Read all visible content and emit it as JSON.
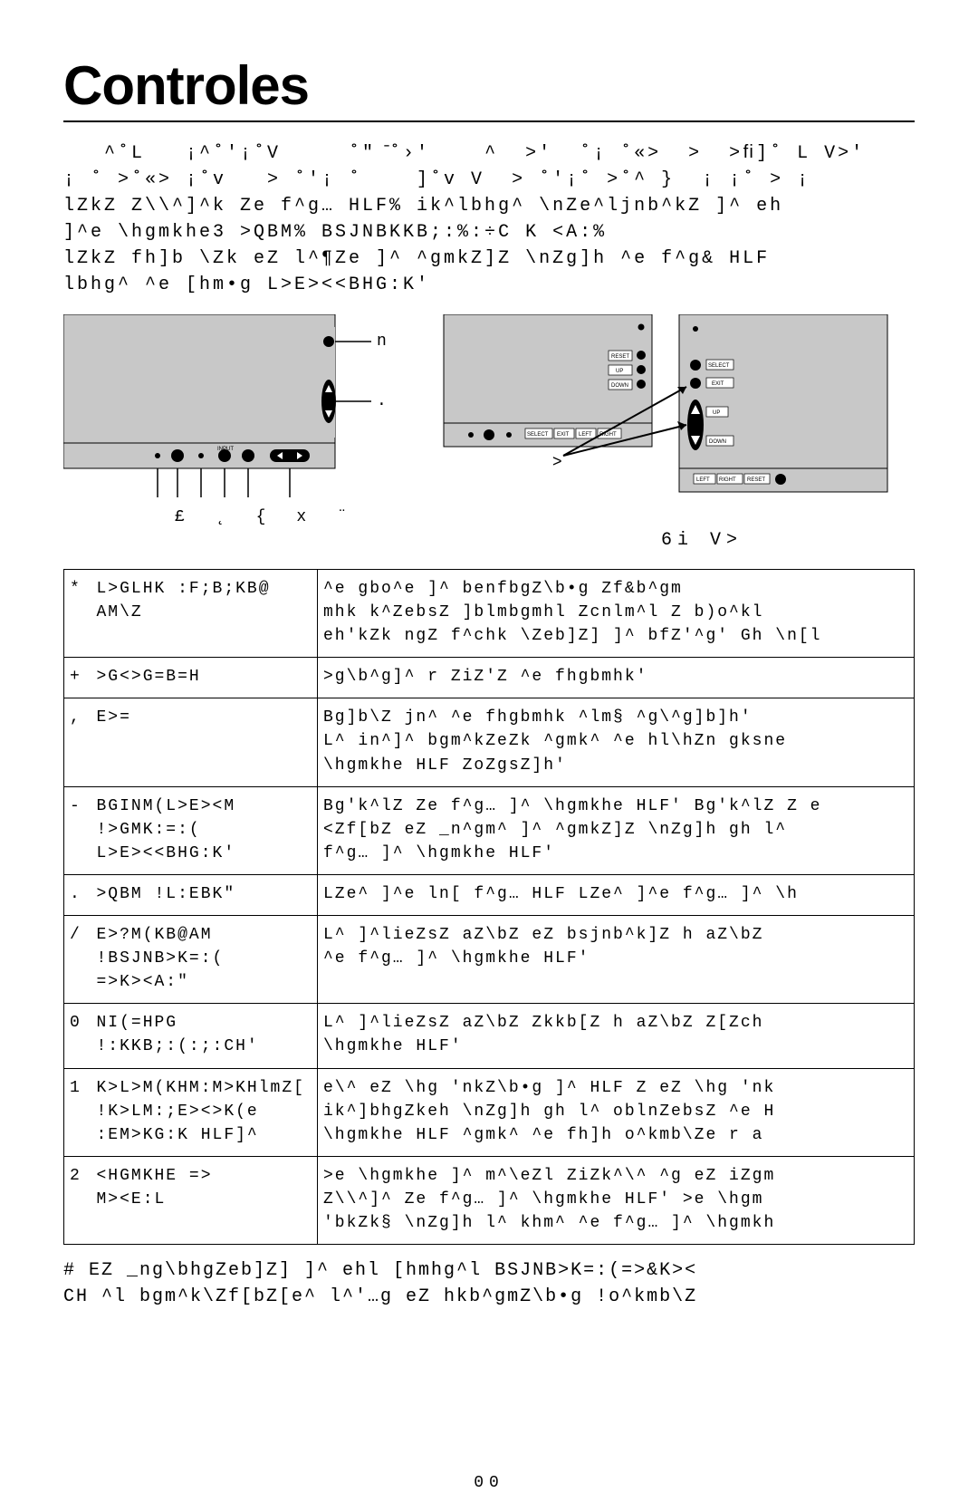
{
  "title": "Controles",
  "intro_lines": [
    "   ^˚L   ¡^˚'¡˚V     ˚\" ̄˚›'    ^  >'  ˚¡ ˚«>  >  >ﬁ]˚ L V>'",
    "¡ ˚ >˚«> ¡˚v   > ˚'¡ ˚    ]˚v V  > ˚'¡˚ >˚^ }  ¡ ¡˚ > ¡",
    "lZkZ Z\\\\^]^k Ze f^g… HLF% ik^lbhg^ \\nZe^ljnb^kZ ]^ eh",
    "]^e \\hgmkhe3 >QBM% BSJNBKKB;:%:÷C K <A:%",
    "lZkZ fh]b \\Zk eZ l^¶Ze ]^ ^gmkZ]Z \\nZg]h ^e f^g& HLF",
    "lbhg^ ^e [hm•g L>E><<BHG:K'"
  ],
  "diagram_left": {
    "bg": "#c8c8c8",
    "fill": "#ffffff",
    "stroke": "#000000",
    "input_label": "INPUT",
    "pointer_n": "n",
    "pointer_dot": ".",
    "bottom_symbols": [
      "£",
      "˛",
      "{",
      "x",
      "¨"
    ]
  },
  "diagram_right": {
    "bg": "#c8c8c8",
    "stroke": "#000000",
    "btns_left": [
      "RESET",
      "UP",
      "DOWN"
    ],
    "btns_left_bottom": [
      "SELECT",
      "EXIT",
      "LEFT",
      "RIGHT"
    ],
    "btns_right": [
      "SELECT",
      "EXIT",
      "UP",
      "DOWN"
    ],
    "btns_right_bottom": [
      "LEFT",
      "RIGHT",
      "RESET"
    ],
    "below_symbol": ">",
    "caption": "6i   V>"
  },
  "filter": "url(#noiseFilter)",
  "rows": [
    {
      "idx": "*",
      "label": "L>GLHK :F;B;KB@ AM\\Z",
      "desc": "^e gbo^e ]^ benfbgZ\\b•g Zf&b^gm\nmhk k^ZebsZ ]blmbgmhl Zcnlm^l Z b)o^kl\neh'kZk ngZ f^chk \\Zeb]Z] ]^ bfZ'^g' Gh \\n[l"
    },
    {
      "idx": "+",
      "label": ">G<>G=B=H",
      "desc": ">g\\b^g]^ r ZiZ'Z ^e fhgbmhk'"
    },
    {
      "idx": ",",
      "label": "E>=",
      "desc": "Bg]b\\Z jn^ ^e fhgbmhk ^lm§ ^g\\^g]b]h'\nL^ in^]^ bgm^kZeZk ^gmk^ ^e hl\\hZn gksne\n\\hgmkhe HLF ZoZgsZ]h'"
    },
    {
      "idx": "-",
      "label": "BGINM(L>E><M\n!>GMK:=:(\nL>E><<BHG:K'",
      "desc": "Bg'k^lZ Ze f^g… ]^ \\hgmkhe HLF' Bg'k^lZ Z e\n<Zf[bZ eZ _n^gm^ ]^ ^gmkZ]Z \\nZg]h gh l^\nf^g… ]^ \\hgmkhe HLF'"
    },
    {
      "idx": ".",
      "label": ">QBM !L:EBK\"",
      "desc": "LZe^ ]^e ln[ f^g… HLF LZe^ ]^e f^g… ]^ \\h"
    },
    {
      "idx": "/",
      "label": "E>?M(KB@AM\n!BSJNB>K=:(\n=>K><A:\"",
      "desc": "L^ ]^lieZsZ aZ\\bZ eZ bsjnb^k]Z h aZ\\bZ\n^e f^g… ]^ \\hgmkhe HLF'"
    },
    {
      "idx": "0",
      "label": "NI(=HPG\n!:KKB;:(:;:CH'",
      "desc": "L^ ]^lieZsZ aZ\\bZ Zkkb[Z h aZ\\bZ Z[Zch\n\\hgmkhe HLF'"
    },
    {
      "idx": "1",
      "label": "K>L>M(KHM:M>KHlmZ[\n!K>LM:;E><>K(e\n:EM>KG:K HLF]^",
      "desc": "e\\^ eZ \\hg 'nkZ\\b•g ]^ HLF Z eZ \\hg 'nk\nik^]bhgZkeh \\nZg]h gh l^ oblnZebsZ ^e H\n\\hgmkhe HLF ^gmk^ ^e fh]h o^kmb\\Ze r a"
    },
    {
      "idx": "2",
      "label": "<HGMKHE =>\nM><E:L",
      "desc": ">e \\hgmkhe ]^ m^\\eZl ZiZk^\\^ ^g eZ iZgm\nZ\\\\^]^ Ze f^g… ]^ \\hgmkhe HLF' >e \\hgm\n'bkZk§ \\nZg]h l^ khm^ ^e f^g… ]^ \\hgmkh"
    }
  ],
  "footer_lines": [
    "# EZ _ng\\bhgZeb]Z] ]^ ehl [hmhg^l BSJNB>K=:(=>&K><",
    "CH ^l bgm^k\\Zf[bZ[e^ l^'…g eZ hkb^gmZ\\b•g !o^kmb\\Z"
  ],
  "page_number": "00",
  "colors": {
    "text": "#000000",
    "background": "#ffffff",
    "diagram_bg": "#c8c8c8"
  }
}
